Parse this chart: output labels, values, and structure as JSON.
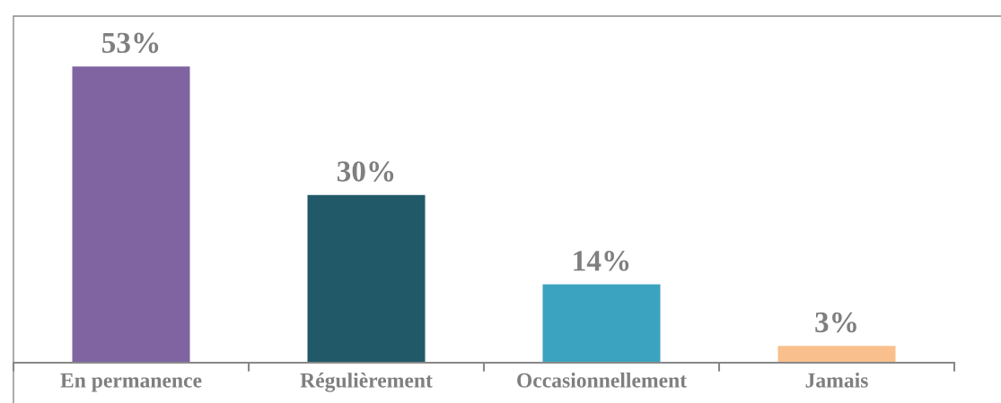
{
  "chart_data": {
    "type": "bar",
    "categories": [
      "En permanence",
      "Régulièrement",
      "Occasionnellement",
      "Jamais"
    ],
    "values": [
      53,
      30,
      14,
      3
    ],
    "colors": [
      "#8064a2",
      "#215968",
      "#3ba3bf",
      "#f9c08d"
    ],
    "value_labels": [
      "53%",
      "30%",
      "14%",
      "3%"
    ],
    "ylim": [
      0,
      62
    ],
    "grid": false,
    "legend": false
  }
}
